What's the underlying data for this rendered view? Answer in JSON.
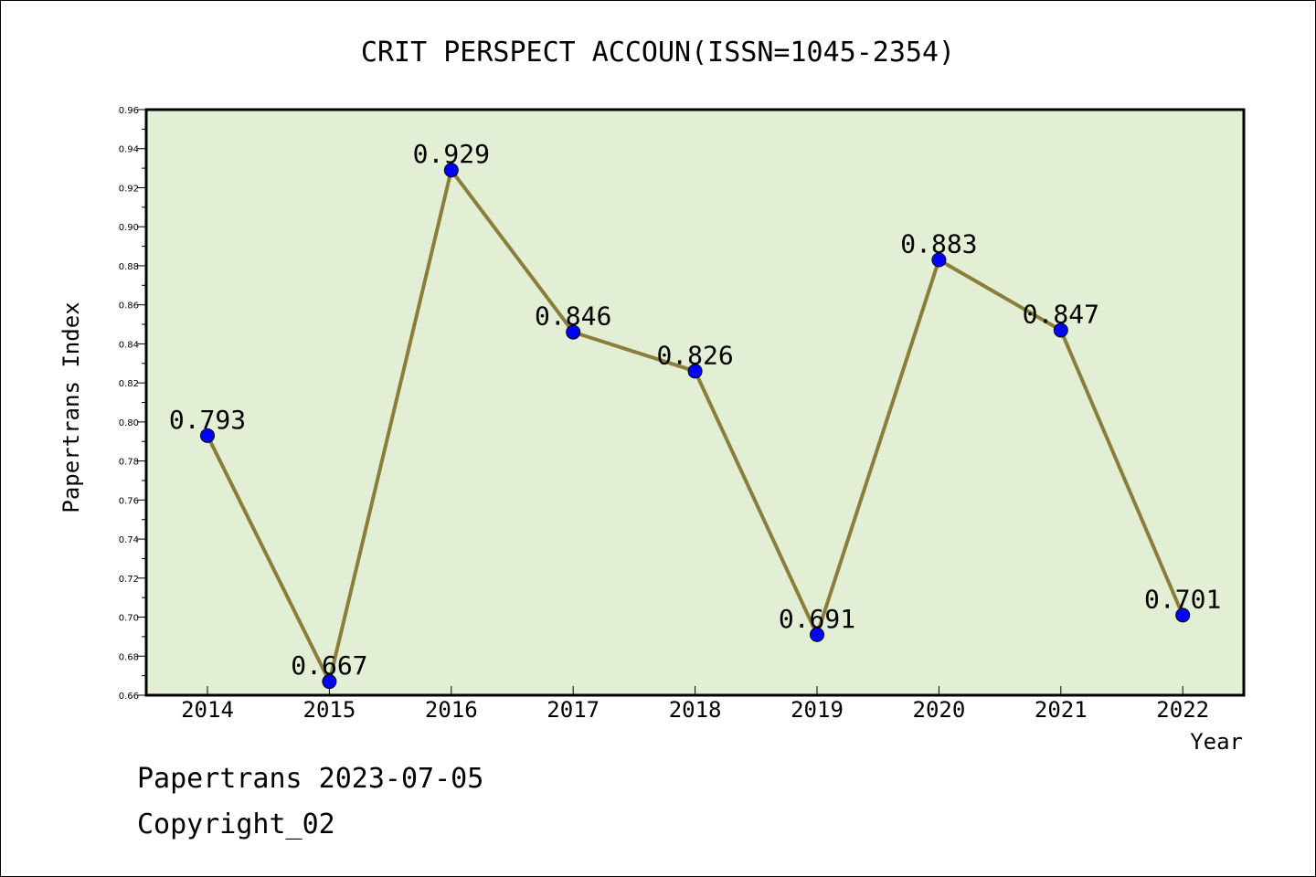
{
  "chart_data": {
    "type": "line",
    "title": "CRIT PERSPECT ACCOUN(ISSN=1045-2354)",
    "xlabel": "Year",
    "ylabel": "Papertrans Index",
    "categories": [
      "2014",
      "2015",
      "2016",
      "2017",
      "2018",
      "2019",
      "2020",
      "2021",
      "2022"
    ],
    "values": [
      0.793,
      0.667,
      0.929,
      0.846,
      0.826,
      0.691,
      0.883,
      0.847,
      0.701
    ],
    "value_labels": [
      "0.793",
      "0.667",
      "0.929",
      "0.846",
      "0.826",
      "0.691",
      "0.883",
      "0.847",
      "0.701"
    ],
    "ylim": [
      0.66,
      0.96
    ],
    "yticks": [
      "0.66",
      "0.68",
      "0.70",
      "0.72",
      "0.74",
      "0.76",
      "0.78",
      "0.80",
      "0.82",
      "0.84",
      "0.86",
      "0.88",
      "0.90",
      "0.92",
      "0.94",
      "0.96"
    ],
    "grid": false,
    "colors": {
      "plot_background": "#e2efd5",
      "line": "#8b7d3a",
      "marker": "#0000ff"
    }
  },
  "footer": {
    "date_line": "Papertrans 2023-07-05",
    "copyright": "Copyright_02"
  }
}
